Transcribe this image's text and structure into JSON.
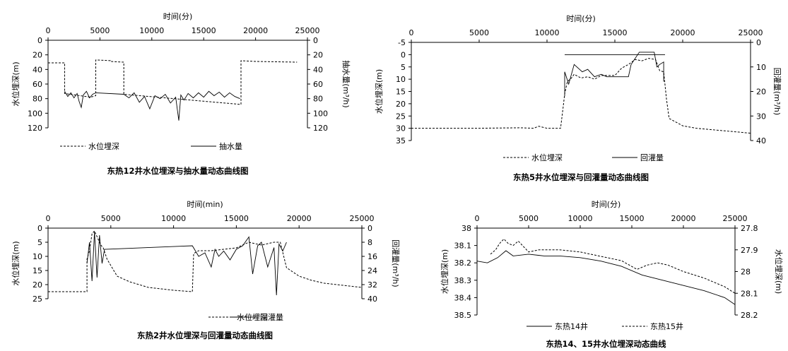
{
  "chart_data": [
    {
      "type": "line",
      "id": "c12",
      "title": "东热12井水位埋深与抽水量动态曲线图",
      "xlabel": "时间(分)",
      "xlim": [
        0,
        25000
      ],
      "xticks": [
        0,
        5000,
        10000,
        15000,
        20000,
        25000
      ],
      "ylabel": "水位埋深(m)",
      "ylim": [
        0,
        120
      ],
      "yticks": [
        0,
        20,
        40,
        60,
        80,
        100,
        120
      ],
      "ylabel2": "抽水量(m³/h)",
      "ylim2": [
        0,
        120
      ],
      "yticks2": [
        0,
        20,
        40,
        60,
        80,
        100,
        120
      ],
      "series": [
        {
          "name": "水位埋深",
          "axis": "left",
          "style": "dashed",
          "x": [
            0,
            1600,
            1600,
            4100,
            4100,
            4600,
            4600,
            6000,
            6000,
            7300,
            7300,
            18600,
            18600,
            20000,
            24000
          ],
          "y": [
            31,
            31,
            73,
            78,
            78,
            76,
            27,
            28,
            29,
            30,
            74,
            88,
            28,
            29,
            30
          ]
        },
        {
          "name": "抽水量",
          "axis": "right",
          "style": "solid",
          "x": [
            1600,
            1900,
            2200,
            2500,
            2800,
            3000,
            3200,
            3400,
            3700,
            4000,
            4300,
            4600,
            7300,
            7800,
            8300,
            8800,
            9300,
            9800,
            10300,
            10800,
            11300,
            11800,
            12300,
            12600,
            12800,
            13100,
            13500,
            14000,
            14500,
            15000,
            15500,
            16000,
            16500,
            17000,
            17500,
            18000,
            18500
          ],
          "y": [
            70,
            77,
            72,
            79,
            73,
            84,
            92,
            75,
            70,
            79,
            74,
            72,
            74,
            79,
            72,
            85,
            77,
            94,
            76,
            80,
            74,
            86,
            78,
            110,
            75,
            82,
            73,
            79,
            72,
            78,
            70,
            76,
            71,
            78,
            72,
            77,
            80
          ]
        }
      ]
    },
    {
      "type": "line",
      "id": "c5",
      "title": "东热5井水位埋深与回灌量动态曲线图",
      "xlabel": "时间(分)",
      "xlim": [
        0,
        25000
      ],
      "xticks": [
        0,
        5000,
        10000,
        15000,
        20000,
        25000
      ],
      "ylabel": "水位埋深(m)",
      "ylim": [
        -5,
        35
      ],
      "yticks": [
        -5,
        0,
        5,
        10,
        15,
        20,
        25,
        30,
        35
      ],
      "ylabel2": "回灌量(m³/h)",
      "ylim2": [
        0,
        40
      ],
      "yticks2": [
        0,
        10,
        20,
        30,
        40
      ],
      "series": [
        {
          "name": "水位埋深",
          "axis": "left",
          "style": "dashed",
          "x": [
            0,
            5000,
            8000,
            9000,
            9400,
            10000,
            11000,
            11200,
            11300,
            11500,
            11800,
            12000,
            12500,
            13000,
            13500,
            14000,
            15000,
            15500,
            16000,
            16500,
            17000,
            17500,
            18000,
            18300,
            18600,
            18800,
            19000,
            20000,
            21000,
            22000,
            23000,
            24000,
            25000
          ],
          "y": [
            30,
            30,
            29.8,
            30,
            29.2,
            30,
            30,
            21,
            16,
            11,
            9.5,
            8,
            9.5,
            9,
            10,
            8.5,
            8.5,
            5.5,
            4,
            2,
            2.5,
            1.5,
            2,
            6.5,
            7,
            18,
            26,
            29,
            30,
            30.5,
            31,
            31.5,
            32
          ]
        },
        {
          "name": "回灌量",
          "axis": "right",
          "style": "solid",
          "x": [
            11300,
            11300,
            11600,
            12000,
            12600,
            13000,
            13500,
            14000,
            14400,
            15000,
            15500,
            16000,
            16200,
            16800,
            17500,
            17900,
            18100,
            18300,
            18600,
            18600
          ],
          "y": [
            22,
            12,
            17,
            9,
            12,
            11,
            14,
            13,
            14,
            14,
            14,
            14,
            9,
            4,
            4,
            4,
            10,
            9,
            8,
            16
          ]
        },
        {
          "name": "回灌量-top",
          "axis": "left",
          "style": "solid",
          "legend": false,
          "x": [
            11300,
            18700
          ],
          "y": [
            0,
            0
          ]
        }
      ]
    },
    {
      "type": "line",
      "id": "c2",
      "title": "东热2井水位埋深与回灌量动态曲线图",
      "xlabel": "时间(min)",
      "xlim": [
        0,
        25000
      ],
      "xticks": [
        0,
        5000,
        10000,
        15000,
        20000,
        25000
      ],
      "ylabel": "水位埋深(m)",
      "ylim": [
        0,
        25
      ],
      "yticks": [
        0,
        5,
        10,
        15,
        20,
        25
      ],
      "ylabel2": "回灌量(m³/h)",
      "ylim2": [
        0,
        40
      ],
      "yticks2": [
        0,
        8,
        16,
        24,
        32,
        40
      ],
      "series": [
        {
          "name": "水位埋深",
          "axis": "left",
          "style": "dashed",
          "x": [
            0,
            3100,
            3100,
            3300,
            3500,
            3700,
            4000,
            4200,
            4400,
            4700,
            5500,
            6500,
            8000,
            10000,
            11500,
            11600,
            12000,
            13000,
            14000,
            15000,
            16000,
            17000,
            18000,
            18500,
            19000,
            20000,
            21000,
            22000,
            23000,
            24000,
            25000
          ],
          "y": [
            22.5,
            22.5,
            11,
            8,
            2,
            1,
            4,
            6,
            7,
            11,
            17,
            19,
            21,
            22,
            22.5,
            9,
            8,
            8,
            7.5,
            7,
            5,
            6,
            5,
            5,
            14,
            17,
            18.5,
            19.5,
            20,
            20.5,
            21
          ]
        },
        {
          "name": "回灌量",
          "axis": "right",
          "style": "solid",
          "x": [
            3100,
            3300,
            3500,
            3700,
            3900,
            4100,
            4300,
            4500,
            11500,
            12000,
            12500,
            13000,
            13300,
            13600,
            14000,
            14500,
            15000,
            15500,
            16000,
            16300,
            16700,
            17000,
            17500,
            18000,
            18200,
            18400,
            18700,
            19000
          ],
          "y": [
            20,
            8,
            30,
            2,
            28,
            4,
            20,
            12,
            10,
            16,
            14,
            22,
            12,
            16,
            13,
            18,
            12,
            10,
            5,
            26,
            10,
            8,
            22,
            11,
            38,
            9,
            13,
            8
          ]
        }
      ]
    },
    {
      "type": "line",
      "id": "c14",
      "title": "东热14、15井水位埋深动态曲线",
      "xlabel": "时间(分)",
      "xlim": [
        0,
        25000
      ],
      "xticks": [
        0,
        5000,
        10000,
        15000,
        20000,
        25000
      ],
      "ylabel": "水位埋深(m)",
      "ylim": [
        38,
        38.5
      ],
      "yticks": [
        "38",
        "38.1",
        "38.2",
        "38.3",
        "38.4",
        "38.5"
      ],
      "ylabel2": "水位埋深(m)",
      "ylim2": [
        27.8,
        28.2
      ],
      "yticks2": [
        "27.8",
        "27.9",
        "28",
        "28.1",
        "28.2"
      ],
      "series": [
        {
          "name": "东热14井",
          "axis": "left",
          "style": "solid",
          "x": [
            0,
            1000,
            2000,
            2800,
            3500,
            5000,
            6500,
            8000,
            10000,
            12000,
            14000,
            16000,
            18000,
            20000,
            22000,
            24000,
            25000
          ],
          "y": [
            38.19,
            38.2,
            38.17,
            38.13,
            38.16,
            38.15,
            38.16,
            38.16,
            38.17,
            38.19,
            38.22,
            38.27,
            38.3,
            38.33,
            38.36,
            38.4,
            38.44
          ]
        },
        {
          "name": "东热15井",
          "axis": "right",
          "style": "dashed",
          "x": [
            1300,
            1800,
            2200,
            2600,
            3000,
            3500,
            4000,
            5000,
            6000,
            7000,
            8000,
            10000,
            12000,
            14000,
            15500,
            16500,
            17500,
            18500,
            20000,
            22000,
            24000,
            25000
          ],
          "y": [
            27.92,
            27.9,
            27.87,
            27.85,
            27.87,
            27.88,
            27.86,
            27.91,
            27.9,
            27.9,
            27.9,
            27.91,
            27.93,
            27.95,
            27.99,
            27.97,
            27.96,
            27.97,
            28,
            28.03,
            28.07,
            28.1
          ]
        }
      ]
    }
  ]
}
